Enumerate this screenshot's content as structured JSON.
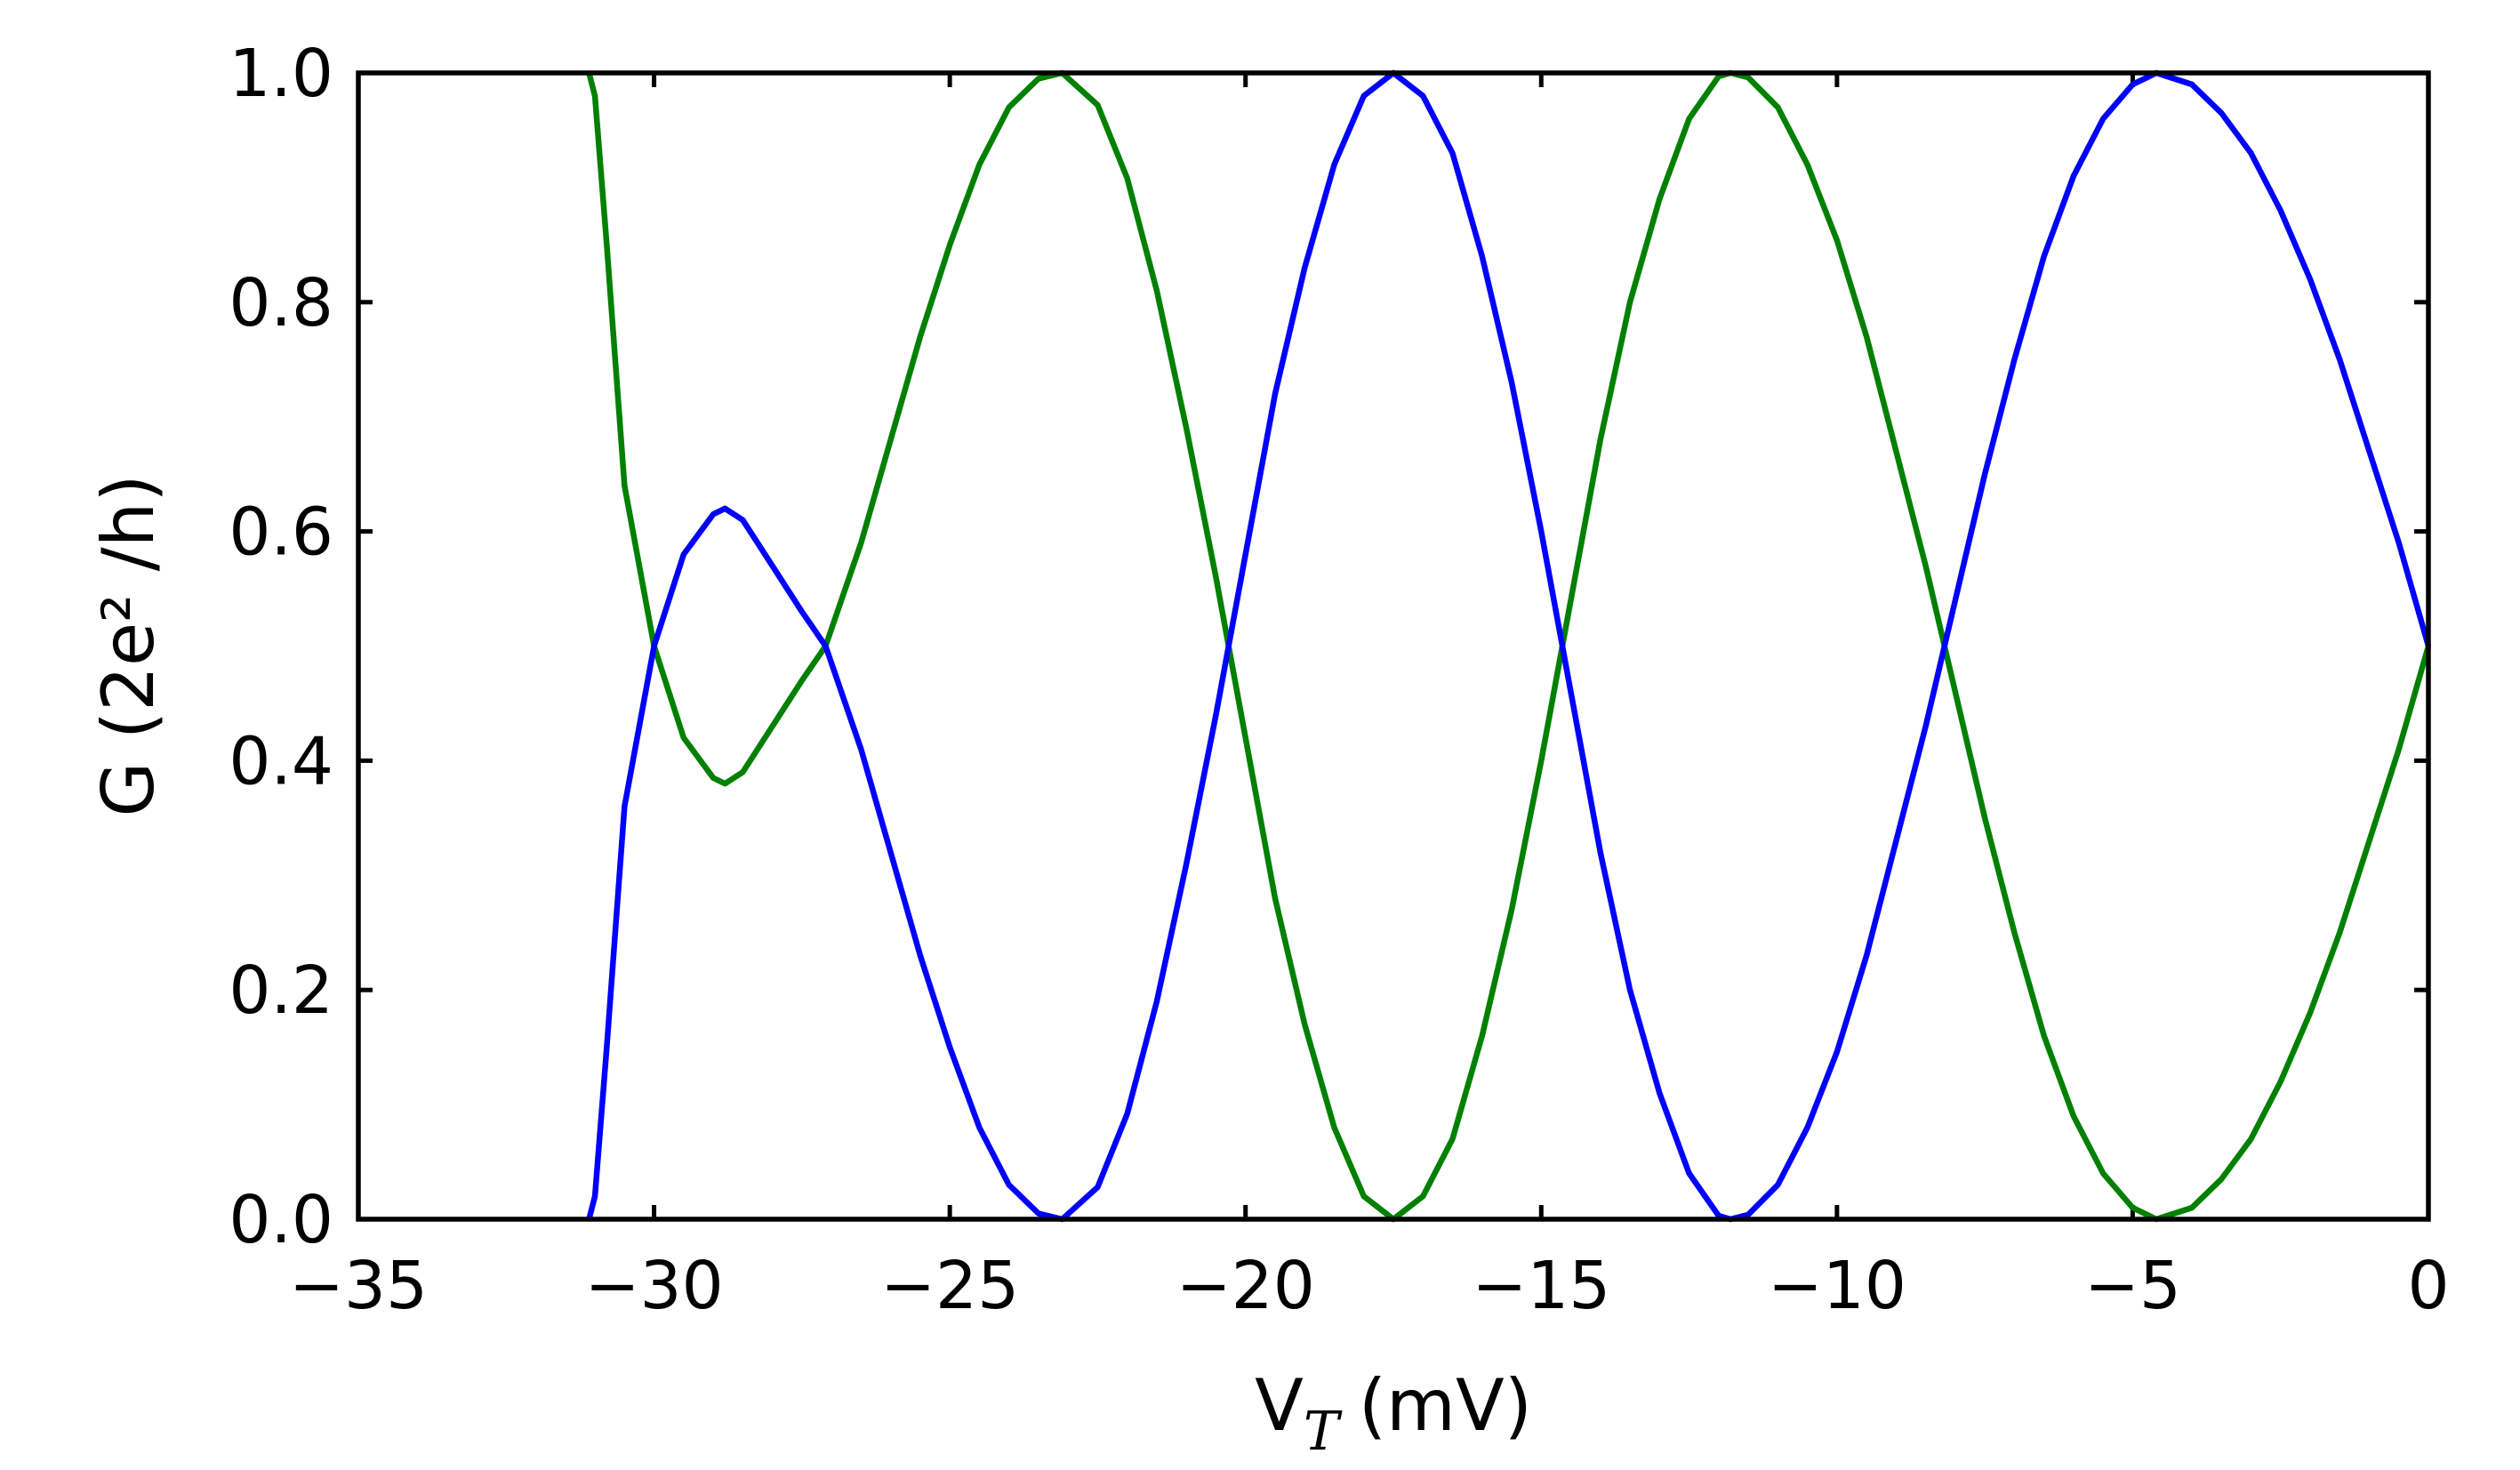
{
  "chart_data": {
    "type": "line",
    "xlabel": [
      "V",
      "T",
      "(mV)"
    ],
    "ylabel": "G (2e² /h)",
    "xlim": [
      -35,
      0
    ],
    "ylim": [
      0,
      1
    ],
    "xticks": [
      {
        "value": -35,
        "label": "−35"
      },
      {
        "value": -30,
        "label": "−30"
      },
      {
        "value": -25,
        "label": "−25"
      },
      {
        "value": -20,
        "label": "−20"
      },
      {
        "value": -15,
        "label": "−15"
      },
      {
        "value": -10,
        "label": "−10"
      },
      {
        "value": -5,
        "label": "−5"
      },
      0
    ],
    "yticks": [
      {
        "value": 0,
        "label": "0.0"
      },
      0.2,
      0.4,
      0.6,
      0.8,
      {
        "value": 1,
        "label": "1.0"
      }
    ],
    "grid": false,
    "x": [
      -31.1,
      -31,
      -30.8,
      -30.5,
      -30,
      -29.5,
      -29,
      -28.8,
      -28.5,
      -28,
      -27.5,
      -27.1,
      -26.5,
      -26,
      -25.5,
      -25,
      -24.5,
      -24,
      -23.5,
      -23.1,
      -22.5,
      -22,
      -21.5,
      -21,
      -20.5,
      -20,
      -19.5,
      -19,
      -18.5,
      -18,
      -17.5,
      -17,
      -16.5,
      -16,
      -15.5,
      -15,
      -14.5,
      -14,
      -13.5,
      -13,
      -12.5,
      -12,
      -11.8,
      -11.5,
      -11,
      -10.5,
      -10,
      -9.5,
      -9,
      -8.5,
      -8,
      -7.5,
      -7,
      -6.5,
      -6,
      -5.5,
      -5,
      -4.6,
      -4,
      -3.5,
      -3,
      -2.5,
      -2,
      -1.5,
      -1,
      -0.5,
      0
    ],
    "series": [
      {
        "color": "#008000",
        "values": [
          1,
          0.98,
          0.85,
          0.64,
          0.5,
          0.42,
          0.385,
          0.38,
          0.39,
          0.43,
          0.47,
          0.5,
          0.59,
          0.68,
          0.77,
          0.85,
          0.92,
          0.97,
          0.995,
          1,
          0.972,
          0.908,
          0.81,
          0.69,
          0.56,
          0.42,
          0.28,
          0.17,
          0.08,
          0.02,
          0,
          0.02,
          0.07,
          0.16,
          0.27,
          0.4,
          0.54,
          0.68,
          0.8,
          0.89,
          0.96,
          0.997,
          1,
          0.996,
          0.97,
          0.92,
          0.854,
          0.77,
          0.67,
          0.57,
          0.46,
          0.35,
          0.25,
          0.16,
          0.09,
          0.04,
          0.01,
          0,
          0.01,
          0.035,
          0.07,
          0.12,
          0.18,
          0.25,
          0.33,
          0.41,
          0.5
        ]
      },
      {
        "color": "#0000ff",
        "values": [
          0,
          0.02,
          0.15,
          0.36,
          0.5,
          0.58,
          0.615,
          0.62,
          0.61,
          0.57,
          0.53,
          0.5,
          0.41,
          0.32,
          0.23,
          0.15,
          0.08,
          0.03,
          0.005,
          0,
          0.028,
          0.092,
          0.19,
          0.31,
          0.44,
          0.58,
          0.72,
          0.83,
          0.92,
          0.98,
          1,
          0.98,
          0.93,
          0.84,
          0.73,
          0.6,
          0.46,
          0.32,
          0.2,
          0.11,
          0.04,
          0.003,
          0,
          0.004,
          0.03,
          0.08,
          0.146,
          0.23,
          0.33,
          0.43,
          0.54,
          0.65,
          0.75,
          0.84,
          0.91,
          0.96,
          0.99,
          1,
          0.99,
          0.965,
          0.93,
          0.88,
          0.82,
          0.75,
          0.67,
          0.59,
          0.5
        ]
      }
    ]
  }
}
